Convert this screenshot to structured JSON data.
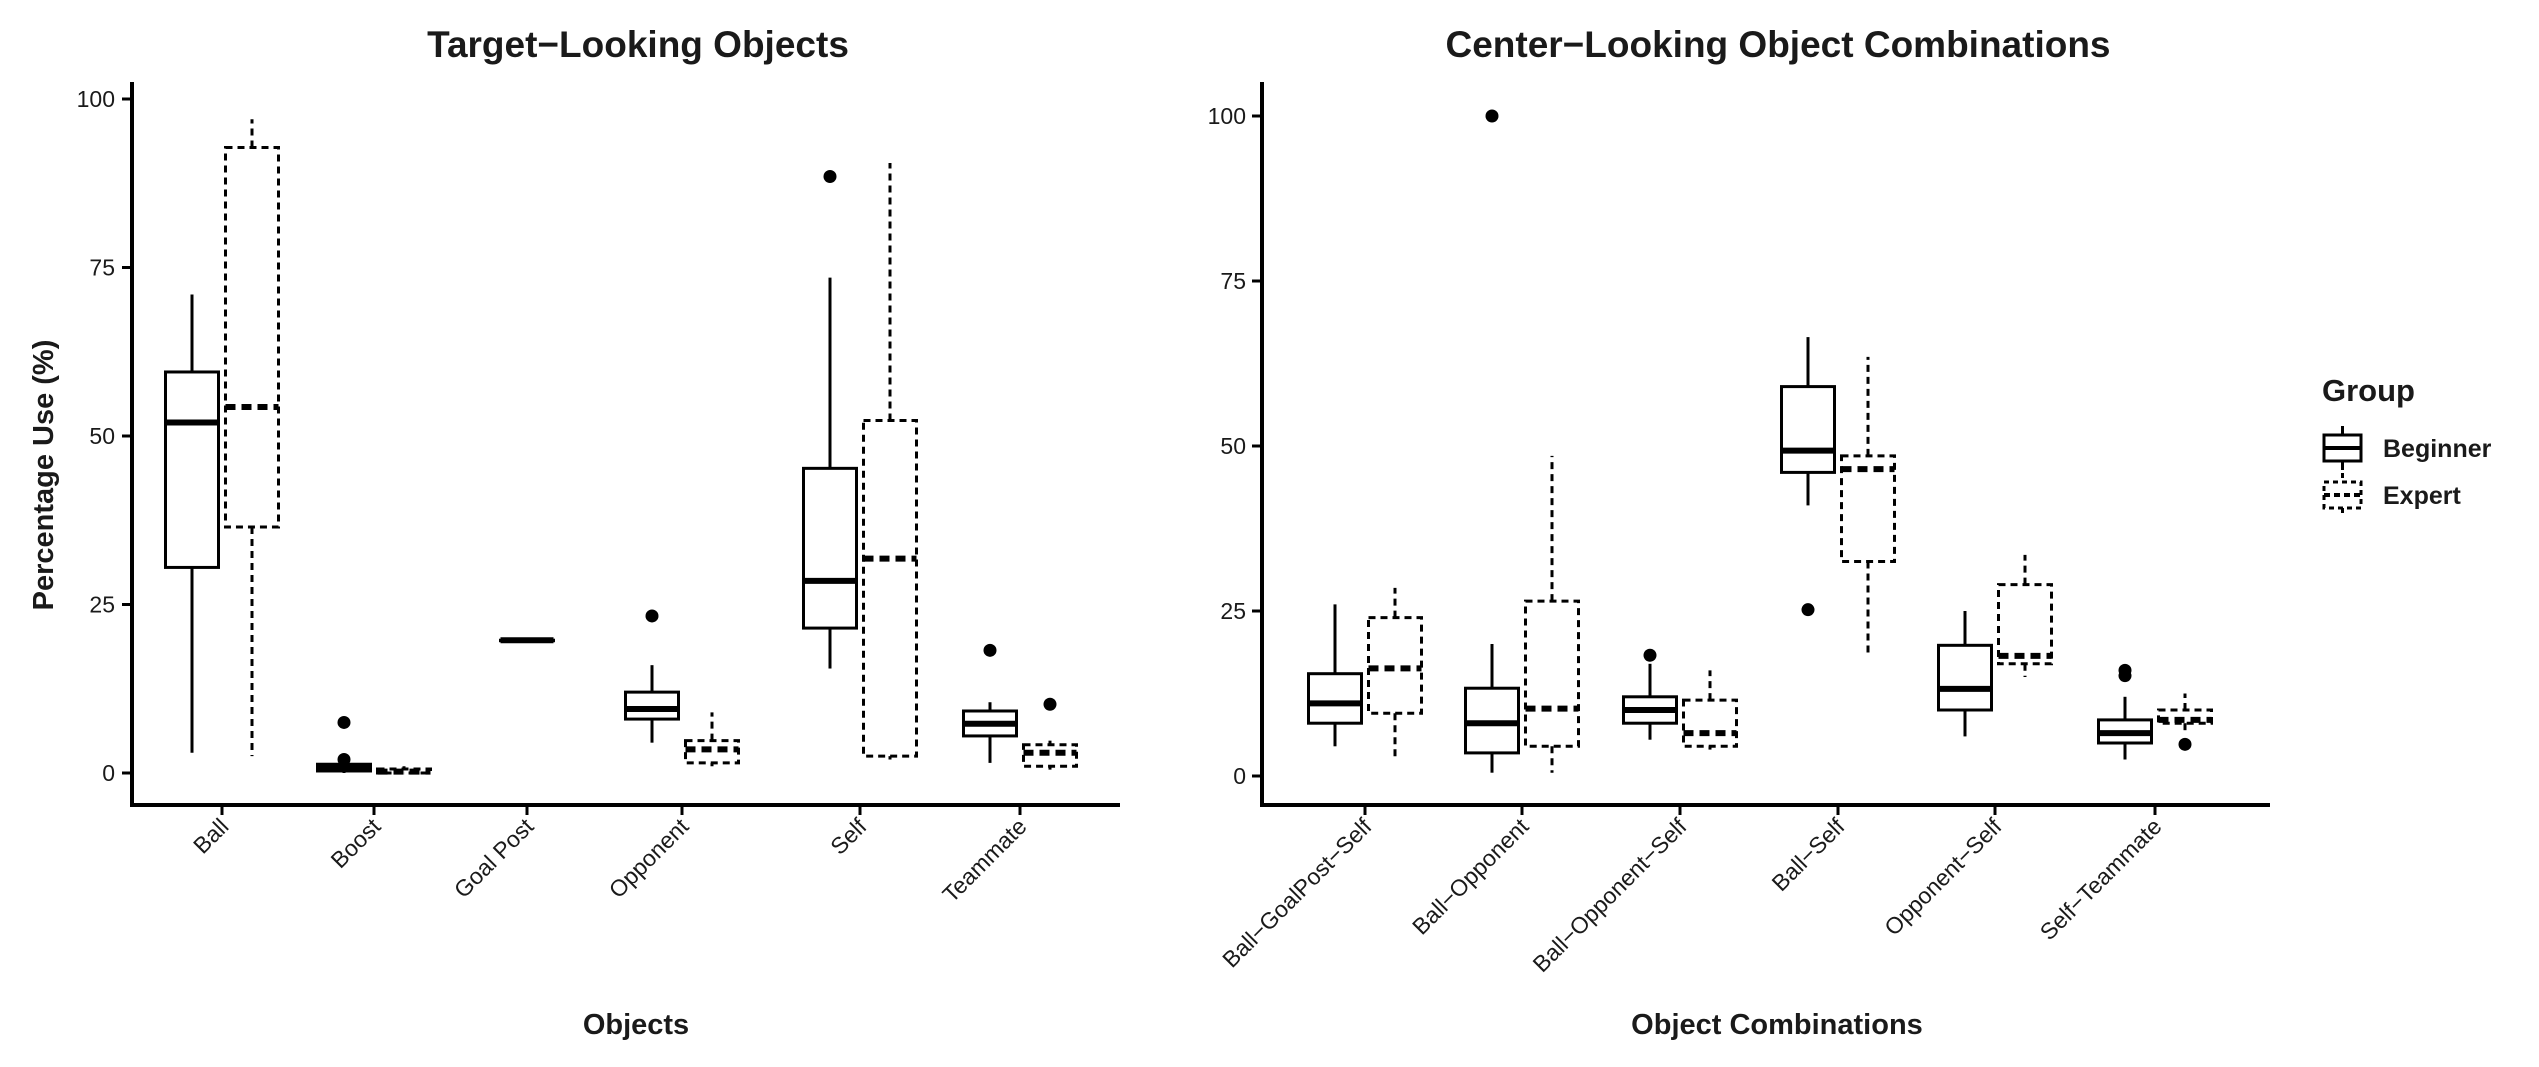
{
  "chart_data": [
    {
      "type": "box",
      "title": "Target−Looking Objects",
      "xlabel": "Objects",
      "ylabel": "Percentage Use (%)",
      "ylim": [
        -4,
        104
      ],
      "yticks": [
        0,
        25,
        50,
        75,
        100
      ],
      "categories": [
        "Ball",
        "Boost",
        "Goal Post",
        "Opponent",
        "Self",
        "Teammate"
      ],
      "series": [
        {
          "name": "Beginner",
          "line_style": "solid",
          "boxes": [
            {
              "category": "Ball",
              "lower_whisker": 3,
              "q1": 30.5,
              "median": 52,
              "q3": 59.5,
              "upper_whisker": 71,
              "outliers": []
            },
            {
              "category": "Boost",
              "lower_whisker": 0,
              "q1": 0.3,
              "median": 0.8,
              "q3": 1.3,
              "upper_whisker": 1.8,
              "outliers": [
                7.5,
                2
              ]
            },
            {
              "category": "Goal Post",
              "lower_whisker": 19.7,
              "q1": 19.7,
              "median": 19.7,
              "q3": 19.7,
              "upper_whisker": 19.7,
              "outliers": []
            },
            {
              "category": "Opponent",
              "lower_whisker": 4.5,
              "q1": 8,
              "median": 9.5,
              "q3": 12,
              "upper_whisker": 16,
              "outliers": [
                23.3
              ]
            },
            {
              "category": "Self",
              "lower_whisker": 15.5,
              "q1": 21.5,
              "median": 28.5,
              "q3": 45.2,
              "upper_whisker": 73.5,
              "outliers": [
                88.5
              ]
            },
            {
              "category": "Teammate",
              "lower_whisker": 1.5,
              "q1": 5.5,
              "median": 7.3,
              "q3": 9.2,
              "upper_whisker": 10.5,
              "outliers": [
                18.2
              ]
            }
          ]
        },
        {
          "name": "Expert",
          "line_style": "dashed",
          "boxes": [
            {
              "category": "Ball",
              "lower_whisker": 2.5,
              "q1": 36.5,
              "median": 54.3,
              "q3": 92.8,
              "upper_whisker": 97,
              "outliers": []
            },
            {
              "category": "Boost",
              "lower_whisker": 0,
              "q1": 0,
              "median": 0.2,
              "q3": 0.6,
              "upper_whisker": 1,
              "outliers": []
            },
            {
              "category": "Opponent",
              "lower_whisker": 1,
              "q1": 1.5,
              "median": 3.5,
              "q3": 4.8,
              "upper_whisker": 9,
              "outliers": []
            },
            {
              "category": "Self",
              "lower_whisker": 2,
              "q1": 2.5,
              "median": 31.8,
              "q3": 52.3,
              "upper_whisker": 90.5,
              "outliers": []
            },
            {
              "category": "Teammate",
              "lower_whisker": 0.5,
              "q1": 1,
              "median": 3,
              "q3": 4.2,
              "upper_whisker": 4.8,
              "outliers": [
                10.2
              ]
            }
          ]
        }
      ]
    },
    {
      "type": "box",
      "title": "Center−Looking Object Combinations",
      "xlabel": "Object Combinations",
      "ylabel": "",
      "ylim": [
        -4,
        104
      ],
      "yticks": [
        0,
        25,
        50,
        75,
        100
      ],
      "categories": [
        "Ball−GoalPost−Self",
        "Ball−Opponent",
        "Ball−Opponent−Self",
        "Ball−Self",
        "Opponent−Self",
        "Self−Teammate"
      ],
      "series": [
        {
          "name": "Beginner",
          "line_style": "solid",
          "boxes": [
            {
              "category": "Ball−GoalPost−Self",
              "lower_whisker": 4.5,
              "q1": 8,
              "median": 11,
              "q3": 15.5,
              "upper_whisker": 26,
              "outliers": []
            },
            {
              "category": "Ball−Opponent",
              "lower_whisker": 0.5,
              "q1": 3.5,
              "median": 8,
              "q3": 13.3,
              "upper_whisker": 20,
              "outliers": [
                100
              ]
            },
            {
              "category": "Ball−Opponent−Self",
              "lower_whisker": 5.5,
              "q1": 8,
              "median": 10,
              "q3": 12,
              "upper_whisker": 17,
              "outliers": [
                18.3
              ]
            },
            {
              "category": "Ball−Self",
              "lower_whisker": 41,
              "q1": 46,
              "median": 49.3,
              "q3": 59,
              "upper_whisker": 66.5,
              "outliers": [
                25.2
              ]
            },
            {
              "category": "Opponent−Self",
              "lower_whisker": 6,
              "q1": 10,
              "median": 13.2,
              "q3": 19.8,
              "upper_whisker": 25,
              "outliers": []
            },
            {
              "category": "Self−Teammate",
              "lower_whisker": 2.5,
              "q1": 5,
              "median": 6.5,
              "q3": 8.5,
              "upper_whisker": 12,
              "outliers": [
                16,
                15.2
              ]
            }
          ]
        },
        {
          "name": "Expert",
          "line_style": "dashed",
          "boxes": [
            {
              "category": "Ball−GoalPost−Self",
              "lower_whisker": 3,
              "q1": 9.5,
              "median": 16.3,
              "q3": 24,
              "upper_whisker": 28.5,
              "outliers": []
            },
            {
              "category": "Ball−Opponent",
              "lower_whisker": 0.5,
              "q1": 4.5,
              "median": 10.2,
              "q3": 26.5,
              "upper_whisker": 48.5,
              "outliers": []
            },
            {
              "category": "Ball−Opponent−Self",
              "lower_whisker": 4,
              "q1": 4.5,
              "median": 6.5,
              "q3": 11.5,
              "upper_whisker": 16,
              "outliers": []
            },
            {
              "category": "Ball−Self",
              "lower_whisker": 18,
              "q1": 32.5,
              "median": 46.5,
              "q3": 48.5,
              "upper_whisker": 63.5,
              "outliers": []
            },
            {
              "category": "Opponent−Self",
              "lower_whisker": 15,
              "q1": 17,
              "median": 18.2,
              "q3": 29,
              "upper_whisker": 33.5,
              "outliers": []
            },
            {
              "category": "Self−Teammate",
              "lower_whisker": 6.5,
              "q1": 8,
              "median": 8.5,
              "q3": 10,
              "upper_whisker": 12.5,
              "outliers": [
                4.8
              ]
            }
          ]
        }
      ]
    }
  ],
  "legend": {
    "title": "Group",
    "items": [
      {
        "label": "Beginner",
        "line_style": "solid"
      },
      {
        "label": "Expert",
        "line_style": "dashed"
      }
    ]
  },
  "colors": {
    "ink": "#000000",
    "background": "#ffffff"
  }
}
